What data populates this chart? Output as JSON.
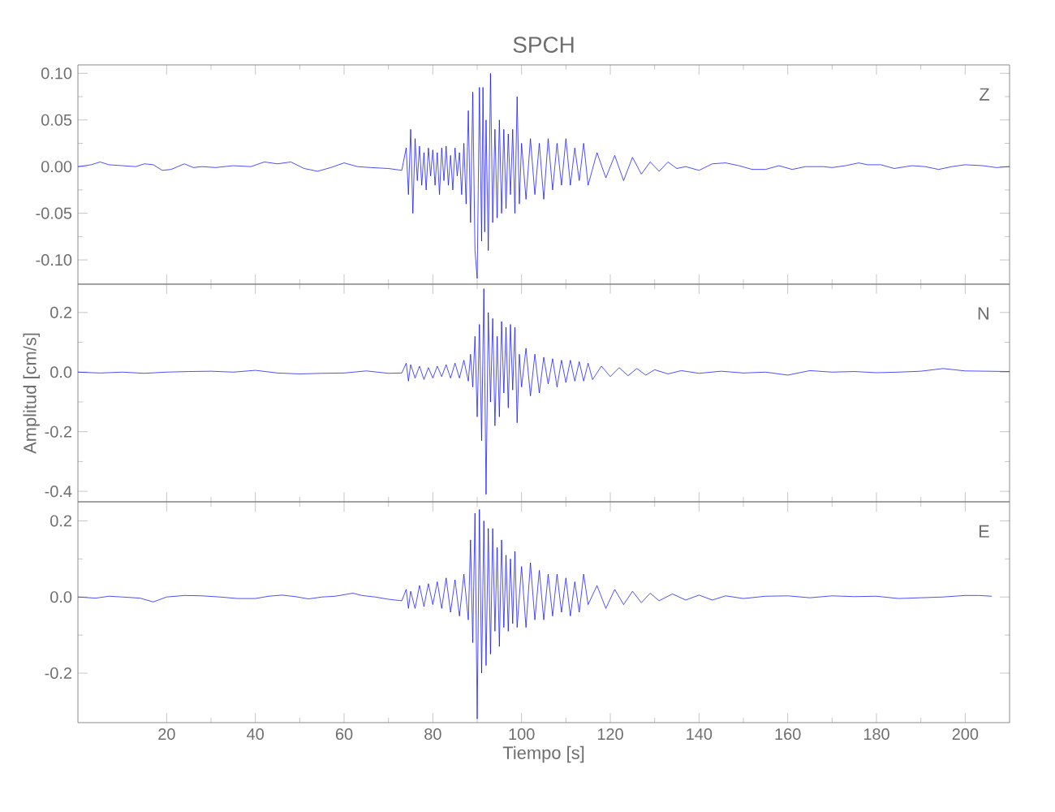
{
  "chart_data": [
    {
      "type": "line",
      "title": "SPCH",
      "annotations": [
        "Z"
      ],
      "xlim": [
        0,
        210
      ],
      "ylim": [
        -0.126,
        0.109
      ],
      "xticks": [
        20,
        40,
        60,
        80,
        100,
        120,
        140,
        160,
        180,
        200
      ],
      "yticks": [
        {
          "value": -0.1,
          "label": "-0.10"
        },
        {
          "value": -0.05,
          "label": "-0.05"
        },
        {
          "value": 0,
          "label": "0.00"
        },
        {
          "value": 0.05,
          "label": "0.05"
        },
        {
          "value": 0.1,
          "label": "0.10"
        }
      ],
      "tick_labels": "y",
      "series": [
        {
          "color": "#0000ff",
          "x": [
            0,
            3,
            5,
            7,
            10,
            13,
            15,
            17,
            19,
            21,
            24,
            26,
            28,
            31,
            35,
            39,
            42,
            45,
            48,
            51,
            54,
            57,
            60,
            63,
            66,
            70,
            73,
            74,
            74.5,
            75,
            75.5,
            76,
            76.5,
            77,
            77.5,
            78,
            78.5,
            79,
            79.5,
            80,
            80.5,
            81,
            81.5,
            82,
            82.5,
            83,
            83.5,
            84,
            84.5,
            85,
            85.5,
            86,
            86.5,
            87,
            87.5,
            88,
            88.5,
            89,
            89.5,
            90,
            90.5,
            91,
            91.3,
            91.7,
            92,
            92.5,
            93,
            93.5,
            94,
            94.5,
            95,
            95.5,
            96,
            96.5,
            97,
            97.5,
            98,
            98.5,
            99,
            99.5,
            100,
            101,
            102,
            103,
            104,
            105,
            106,
            107,
            108,
            109,
            110,
            111,
            112,
            113,
            114,
            115,
            117,
            119,
            121,
            123,
            125,
            127,
            129,
            131,
            133,
            135,
            137,
            140,
            143,
            146,
            149,
            152,
            155,
            158,
            161,
            164,
            168,
            170,
            173,
            176,
            178,
            181,
            184,
            188,
            191,
            194,
            197,
            200,
            204,
            207,
            210
          ],
          "values": [
            0.0,
            0.002,
            0.005,
            0.002,
            0.001,
            0.0,
            0.003,
            0.002,
            -0.004,
            -0.003,
            0.003,
            -0.001,
            0.0,
            -0.001,
            0.001,
            0.0,
            0.005,
            0.003,
            0.005,
            -0.002,
            -0.005,
            -0.001,
            0.004,
            0.0,
            -0.001,
            -0.002,
            -0.004,
            0.02,
            -0.03,
            0.04,
            -0.05,
            0.03,
            -0.015,
            0.022,
            -0.02,
            0.015,
            -0.025,
            0.02,
            -0.01,
            0.018,
            -0.02,
            0.015,
            -0.03,
            0.02,
            -0.015,
            0.022,
            -0.02,
            0.012,
            -0.025,
            0.02,
            -0.01,
            0.015,
            -0.03,
            0.025,
            -0.04,
            0.06,
            -0.06,
            0.08,
            -0.09,
            -0.12,
            0.085,
            -0.08,
            0.085,
            -0.07,
            0.05,
            -0.09,
            0.1,
            -0.06,
            0.04,
            -0.055,
            0.05,
            -0.05,
            0.04,
            -0.045,
            0.035,
            -0.03,
            0.04,
            -0.05,
            0.075,
            -0.04,
            0.025,
            -0.035,
            0.03,
            -0.03,
            0.025,
            -0.035,
            0.03,
            -0.025,
            0.025,
            -0.02,
            0.03,
            -0.02,
            0.02,
            -0.015,
            0.025,
            -0.02,
            0.015,
            -0.012,
            0.012,
            -0.015,
            0.01,
            -0.008,
            0.005,
            -0.005,
            0.005,
            -0.002,
            0.0,
            -0.004,
            0.003,
            0.004,
            0.001,
            -0.003,
            -0.003,
            0.001,
            -0.003,
            0.0,
            0.0,
            -0.001,
            0.001,
            0.004,
            0.002,
            0.002,
            -0.002,
            0.001,
            0.0,
            -0.003,
            0.0,
            0.002,
            0.001,
            -0.001,
            0.0
          ]
        }
      ]
    },
    {
      "type": "line",
      "ylabel": "Amplitud [cm/s]",
      "annotations": [
        "N"
      ],
      "xlim": [
        0,
        210
      ],
      "ylim": [
        -0.435,
        0.295
      ],
      "xticks": [
        20,
        40,
        60,
        80,
        100,
        120,
        140,
        160,
        180,
        200
      ],
      "yticks": [
        {
          "value": -0.4,
          "label": "-0.4"
        },
        {
          "value": -0.2,
          "label": "-0.2"
        },
        {
          "value": 0,
          "label": "0.0"
        },
        {
          "value": 0.2,
          "label": "0.2"
        }
      ],
      "tick_labels": "y",
      "series": [
        {
          "color": "#0000ff",
          "x": [
            0,
            5,
            10,
            15,
            20,
            25,
            30,
            35,
            40,
            45,
            50,
            55,
            60,
            65,
            70,
            73,
            74,
            74.5,
            75,
            76,
            77,
            78,
            79,
            80,
            81,
            82,
            83,
            84,
            85,
            86,
            87,
            88,
            88.5,
            89,
            89.5,
            90,
            90.5,
            91,
            91.5,
            92,
            92.5,
            93,
            93.5,
            94,
            94.5,
            95,
            95.5,
            96,
            96.5,
            97,
            97.5,
            98,
            98.5,
            99,
            99.5,
            100,
            101,
            102,
            103,
            104,
            105,
            106,
            107,
            108,
            109,
            110,
            111,
            112,
            113,
            114,
            115,
            116,
            118,
            120,
            122,
            124,
            126,
            128,
            130,
            133,
            136,
            140,
            145,
            150,
            155,
            160,
            165,
            170,
            175,
            180,
            185,
            190,
            195,
            200,
            205,
            210
          ],
          "values": [
            0.0,
            -0.003,
            0.0,
            -0.004,
            0.0,
            0.002,
            0.003,
            0.0,
            0.006,
            -0.003,
            -0.006,
            -0.004,
            -0.003,
            0.004,
            -0.004,
            -0.003,
            0.03,
            -0.03,
            0.025,
            -0.02,
            0.02,
            -0.025,
            0.015,
            -0.02,
            0.02,
            -0.015,
            0.025,
            -0.02,
            0.03,
            -0.02,
            0.04,
            -0.03,
            0.06,
            -0.05,
            0.12,
            -0.15,
            0.16,
            -0.23,
            0.28,
            -0.41,
            0.2,
            -0.1,
            0.18,
            -0.18,
            0.12,
            -0.15,
            0.17,
            -0.07,
            0.15,
            -0.12,
            0.16,
            -0.06,
            0.15,
            -0.17,
            0.06,
            -0.05,
            0.08,
            -0.08,
            0.06,
            -0.07,
            0.05,
            -0.04,
            0.045,
            -0.05,
            0.04,
            -0.035,
            0.04,
            -0.03,
            0.035,
            -0.03,
            0.03,
            -0.025,
            0.02,
            -0.015,
            0.015,
            -0.012,
            0.012,
            -0.01,
            0.008,
            -0.006,
            0.005,
            -0.004,
            0.003,
            -0.003,
            0.0,
            -0.01,
            0.005,
            0.0,
            0.002,
            -0.002,
            0.0,
            0.003,
            0.012,
            0.004,
            0.003,
            0.002
          ]
        }
      ]
    },
    {
      "type": "line",
      "xlabel": "Tiempo [s]",
      "annotations": [
        "E"
      ],
      "xlim": [
        0,
        210
      ],
      "ylim": [
        -0.33,
        0.25
      ],
      "xticks": [
        20,
        40,
        60,
        80,
        100,
        120,
        140,
        160,
        180,
        200
      ],
      "yticks": [
        {
          "value": -0.2,
          "label": "-0.2"
        },
        {
          "value": 0,
          "label": "0.0"
        },
        {
          "value": 0.2,
          "label": "0.2"
        }
      ],
      "series": [
        {
          "color": "#0000ff",
          "x": [
            0,
            4,
            7,
            10,
            14,
            17,
            20,
            24,
            28,
            32,
            36,
            40,
            43,
            46,
            49,
            52,
            55,
            58,
            62,
            64,
            67,
            70,
            73,
            74,
            74.5,
            75,
            76,
            77,
            78,
            79,
            80,
            81,
            82,
            83,
            84,
            85,
            86,
            87,
            88,
            88.5,
            89,
            89.5,
            90,
            90.5,
            91,
            91.5,
            92,
            92.5,
            93,
            93.5,
            94,
            94.5,
            95,
            95.5,
            96,
            96.5,
            97,
            97.5,
            98,
            98.5,
            99,
            100,
            101,
            102,
            103,
            104,
            105,
            106,
            107,
            108,
            109,
            110,
            111,
            112,
            113,
            114,
            115,
            117,
            119,
            121,
            123,
            125,
            127,
            129,
            131,
            134,
            137,
            140,
            143,
            146,
            150,
            155,
            160,
            165,
            170,
            175,
            180,
            185,
            190,
            195,
            200,
            203,
            206
          ],
          "values": [
            0.0,
            -0.003,
            0.002,
            0.0,
            -0.003,
            -0.013,
            0.0,
            0.004,
            0.003,
            0.0,
            -0.004,
            -0.004,
            0.002,
            0.005,
            0.001,
            -0.005,
            0.0,
            0.002,
            0.01,
            0.004,
            0.0,
            -0.006,
            -0.01,
            0.02,
            -0.03,
            0.015,
            -0.03,
            0.03,
            -0.025,
            0.035,
            -0.02,
            0.04,
            -0.03,
            0.05,
            -0.04,
            0.045,
            -0.05,
            0.06,
            -0.06,
            0.15,
            -0.12,
            0.22,
            -0.32,
            0.23,
            -0.2,
            0.2,
            -0.18,
            0.18,
            -0.15,
            0.18,
            -0.09,
            0.13,
            -0.13,
            0.15,
            -0.08,
            0.11,
            -0.09,
            0.1,
            -0.07,
            0.12,
            -0.08,
            0.08,
            -0.08,
            0.09,
            -0.06,
            0.07,
            -0.06,
            0.06,
            -0.05,
            0.06,
            -0.04,
            0.05,
            -0.05,
            0.04,
            -0.04,
            0.06,
            -0.02,
            0.03,
            -0.03,
            0.02,
            -0.02,
            0.015,
            -0.015,
            0.01,
            -0.01,
            0.008,
            -0.008,
            0.005,
            -0.008,
            0.003,
            -0.004,
            0.002,
            0.003,
            -0.002,
            0.003,
            0.001,
            0.002,
            -0.004,
            -0.002,
            0.0,
            0.004,
            0.004,
            0.002
          ]
        }
      ]
    }
  ]
}
